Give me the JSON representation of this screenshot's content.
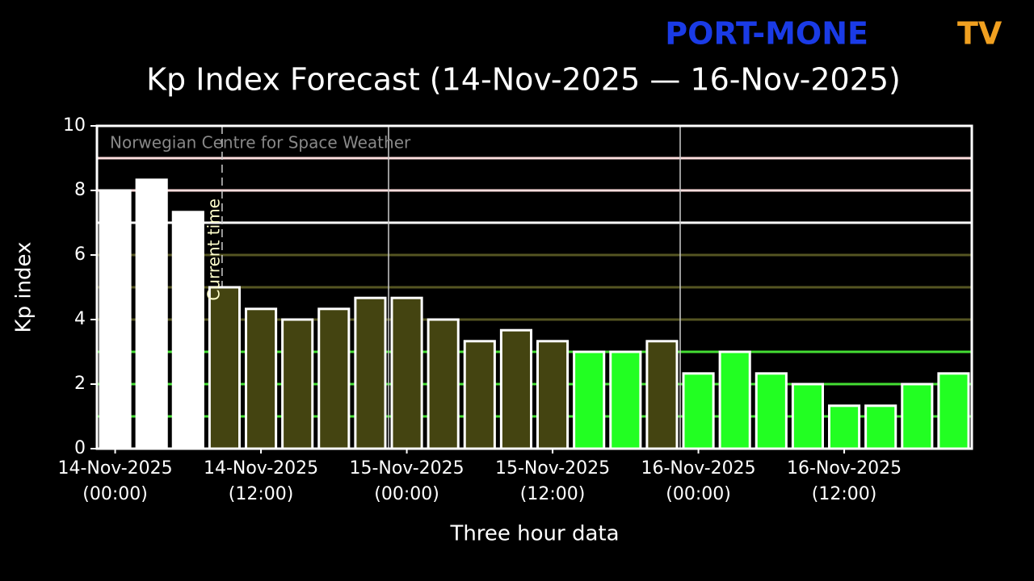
{
  "chart_data": {
    "type": "bar",
    "logo": {
      "left": "PORT-MONE",
      "right": "TV"
    },
    "title": "Kp Index Forecast (14-Nov-2025 — 16-Nov-2025)",
    "source": "Norwegian Centre for Space Weather",
    "x_label": "Three hour data",
    "y_label": "Kp index",
    "x": [
      0,
      3,
      6,
      9,
      12,
      15,
      18,
      21,
      24,
      27,
      30,
      33,
      36,
      39,
      42,
      45,
      48,
      51,
      54,
      57,
      60,
      63,
      66,
      69
    ],
    "values": [
      8,
      8.33,
      7.33,
      5,
      4.33,
      4,
      4.33,
      4.67,
      4.67,
      4,
      3.33,
      3.67,
      3.33,
      3,
      3,
      3.33,
      2.33,
      3,
      2.33,
      2,
      1.33,
      1.33,
      2,
      2.33
    ],
    "colors": [
      "#ffffff",
      "#ffffff",
      "#ffffff",
      "#444411",
      "#444411",
      "#444411",
      "#444411",
      "#444411",
      "#444411",
      "#444411",
      "#444411",
      "#444411",
      "#444411",
      "#22ff22",
      "#22ff22",
      "#444411",
      "#22ff22",
      "#22ff22",
      "#22ff22",
      "#22ff22",
      "#22ff22",
      "#22ff22",
      "#22ff22",
      "#22ff22"
    ],
    "xlim": [
      -1.5,
      70.5
    ],
    "ylim": [
      0,
      10
    ],
    "yticks": [
      0,
      2,
      4,
      6,
      8,
      10
    ],
    "xticks": [
      {
        "value": 0,
        "label": [
          "14-Nov-2025",
          "(00:00)"
        ]
      },
      {
        "value": 12,
        "label": [
          "14-Nov-2025",
          "(12:00)"
        ]
      },
      {
        "value": 24,
        "label": [
          "15-Nov-2025",
          "(00:00)"
        ]
      },
      {
        "value": 36,
        "label": [
          "15-Nov-2025",
          "(12:00)"
        ]
      },
      {
        "value": 48,
        "label": [
          "16-Nov-2025",
          "(00:00)"
        ]
      },
      {
        "value": 60,
        "label": [
          "16-Nov-2025",
          "(12:00)"
        ]
      }
    ],
    "hlines": [
      {
        "value": 1,
        "color": "#44dd33"
      },
      {
        "value": 2,
        "color": "#44dd33"
      },
      {
        "value": 3,
        "color": "#44dd33"
      },
      {
        "value": 4,
        "color": "#555522"
      },
      {
        "value": 5,
        "color": "#555522"
      },
      {
        "value": 6,
        "color": "#555522"
      },
      {
        "value": 7,
        "color": "#ffffff"
      },
      {
        "value": 8,
        "color": "#ffdddd"
      },
      {
        "value": 9,
        "color": "#ffdddd"
      }
    ],
    "vlines": [
      22.5,
      46.5
    ],
    "current_time": {
      "value": 8.8,
      "label": "Current time"
    }
  }
}
